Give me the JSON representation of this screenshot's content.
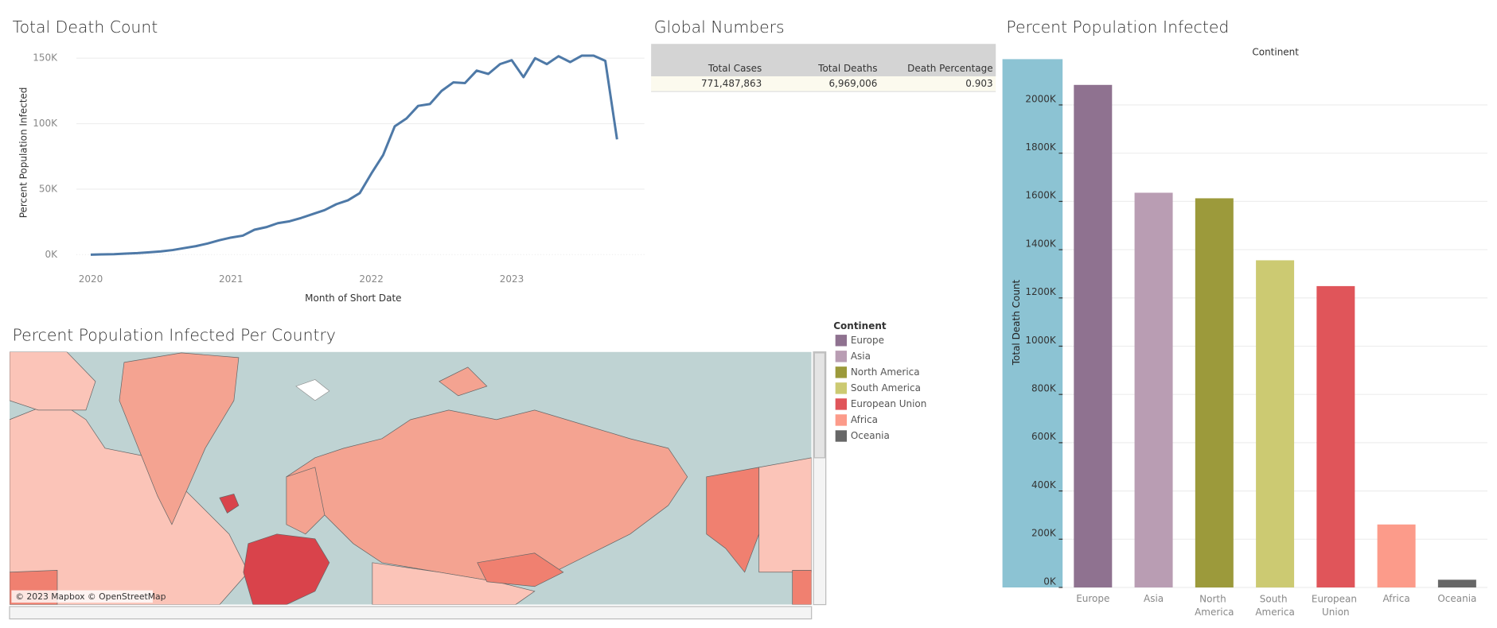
{
  "chart_data": [
    {
      "type": "line",
      "title": "Total Death Count",
      "y_label": "Percent Population Infected",
      "x_label": "Month of Short Date",
      "categories": [
        "2020",
        null,
        null,
        null,
        null,
        null,
        null,
        null,
        null,
        null,
        null,
        null,
        "2021",
        null,
        null,
        null,
        null,
        null,
        null,
        null,
        null,
        null,
        null,
        null,
        "2022",
        null,
        null,
        null,
        null,
        null,
        null,
        null,
        null,
        null,
        null,
        null,
        "2023",
        null,
        null,
        null,
        null,
        null,
        null,
        null,
        null,
        null
      ],
      "values": [
        0,
        200,
        400,
        800,
        1200,
        1800,
        2500,
        3500,
        5000,
        6500,
        8500,
        11000,
        13000,
        14500,
        19000,
        21000,
        24000,
        25500,
        28000,
        31000,
        34000,
        38500,
        41500,
        47000,
        62000,
        76000,
        98000,
        104000,
        113600,
        115000,
        125000,
        131500,
        131000,
        140500,
        138000,
        145500,
        148500,
        135500,
        150000,
        145500,
        151500,
        147000,
        152000,
        152000,
        148000,
        88000
      ],
      "color": "#4e79a7",
      "ylim": [
        0,
        160000
      ],
      "yticks": [
        {
          "value": 0,
          "label": "0K"
        },
        {
          "value": 50000,
          "label": "50K"
        },
        {
          "value": 100000,
          "label": "100K"
        },
        {
          "value": 150000,
          "label": "150K"
        }
      ],
      "grid": true
    },
    {
      "type": "bar",
      "title": "Percent Population Infected",
      "header": "Continent",
      "y_label": "Total Death Count",
      "categories": [
        "Europe",
        "Asia",
        "North America",
        "South America",
        "European Union",
        "Africa",
        "Oceania"
      ],
      "values": [
        2083000,
        1636000,
        1613000,
        1356000,
        1249000,
        261000,
        32000
      ],
      "colors": [
        "#8f7290",
        "#b99db3",
        "#9c9a3b",
        "#ccca72",
        "#e0555a",
        "#fc9b8a",
        "#676767"
      ],
      "ylim": [
        0,
        2200000
      ],
      "yticks": [
        {
          "value": 0,
          "label": "0K"
        },
        {
          "value": 200000,
          "label": "200K"
        },
        {
          "value": 400000,
          "label": "400K"
        },
        {
          "value": 600000,
          "label": "600K"
        },
        {
          "value": 800000,
          "label": "800K"
        },
        {
          "value": 1000000,
          "label": "1000K"
        },
        {
          "value": 1200000,
          "label": "1200K"
        },
        {
          "value": 1400000,
          "label": "1400K"
        },
        {
          "value": 1600000,
          "label": "1600K"
        },
        {
          "value": 1800000,
          "label": "1800K"
        },
        {
          "value": 2000000,
          "label": "2000K"
        }
      ],
      "grid": true
    }
  ],
  "table": {
    "title": "Global Numbers",
    "columns": [
      "Total Cases",
      "Total Deaths",
      "Death Percentage"
    ],
    "rows": [
      [
        "771,487,863",
        "6,969,006",
        "0.903"
      ]
    ]
  },
  "map": {
    "title": "Percent Population Infected Per Country",
    "attribution": "© 2023 Mapbox © OpenStreetMap"
  }
}
